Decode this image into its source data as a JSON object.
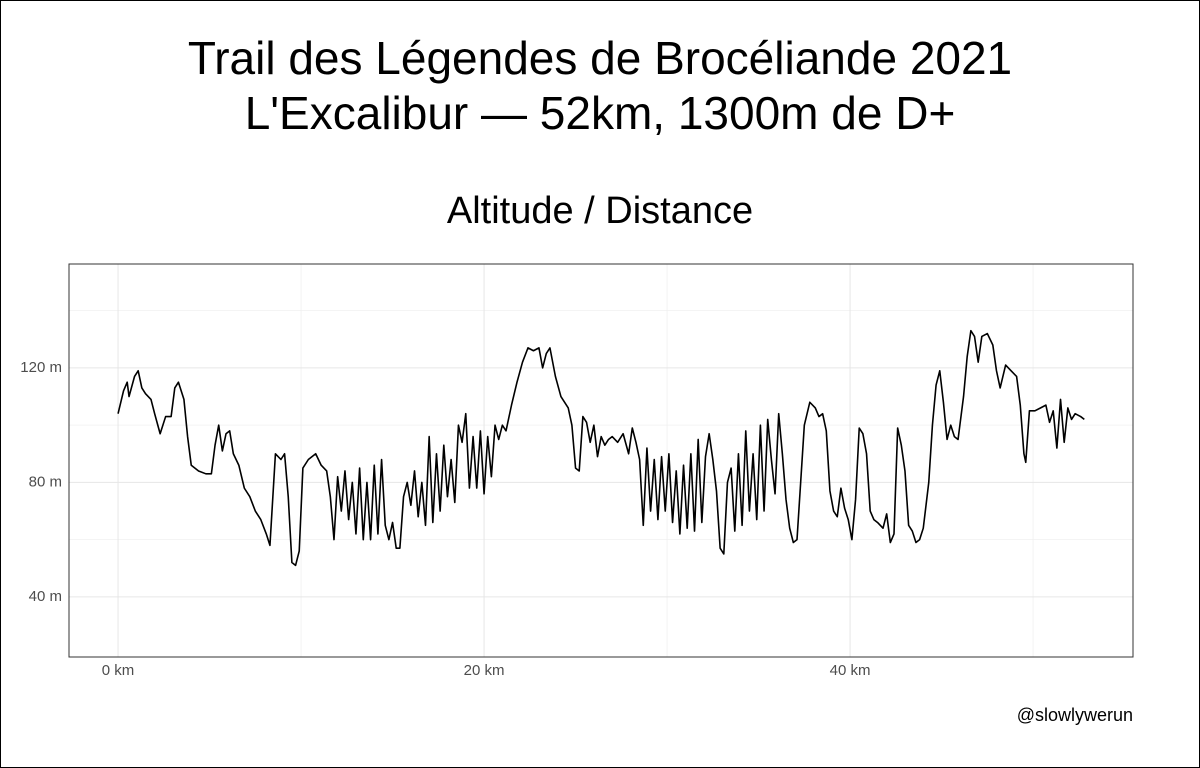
{
  "chart_data": {
    "type": "line",
    "title_lines": [
      "Trail des Légendes de Brocéliande 2021",
      "L'Excalibur — 52km, 1300m de D+"
    ],
    "subtitle": "Altitude / Distance",
    "caption": "@slowlywerun",
    "xlim": [
      -2.68,
      55.46
    ],
    "ylim": [
      19,
      156.3
    ],
    "xticks": [
      {
        "value": 0,
        "label": "0 km"
      },
      {
        "value": 20,
        "label": "20 km"
      },
      {
        "value": 40,
        "label": "40 km"
      }
    ],
    "yticks": [
      {
        "value": 40,
        "label": "40 m"
      },
      {
        "value": 80,
        "label": "80 m"
      },
      {
        "value": 120,
        "label": "120 m"
      }
    ],
    "x_minor_grid": [
      10,
      30,
      50
    ],
    "y_minor_grid": [
      60,
      100,
      140
    ],
    "grid": true,
    "series": [
      {
        "name": "Altitude",
        "color": "#000000",
        "x": [
          0,
          0.3,
          0.5,
          0.6,
          0.9,
          1.1,
          1.3,
          1.5,
          1.8,
          2.0,
          2.3,
          2.6,
          2.9,
          3.1,
          3.3,
          3.6,
          3.8,
          4.0,
          4.4,
          4.8,
          5.1,
          5.3,
          5.5,
          5.7,
          5.9,
          6.1,
          6.3,
          6.6,
          6.9,
          7.2,
          7.5,
          7.8,
          8.1,
          8.3,
          8.6,
          8.9,
          9.1,
          9.3,
          9.5,
          9.7,
          9.9,
          10.1,
          10.4,
          10.8,
          11.1,
          11.4,
          11.6,
          11.8,
          12.0,
          12.2,
          12.4,
          12.6,
          12.8,
          13.0,
          13.2,
          13.4,
          13.6,
          13.8,
          14.0,
          14.2,
          14.4,
          14.6,
          14.8,
          15.0,
          15.2,
          15.4,
          15.6,
          15.8,
          16.0,
          16.2,
          16.4,
          16.6,
          16.8,
          17.0,
          17.2,
          17.4,
          17.6,
          17.8,
          18.0,
          18.2,
          18.4,
          18.6,
          18.8,
          19.0,
          19.2,
          19.4,
          19.6,
          19.8,
          20.0,
          20.2,
          20.4,
          20.6,
          20.8,
          21.0,
          21.2,
          21.5,
          21.8,
          22.1,
          22.4,
          22.7,
          23.0,
          23.2,
          23.4,
          23.6,
          23.9,
          24.2,
          24.6,
          24.8,
          25.0,
          25.2,
          25.4,
          25.6,
          25.8,
          26.0,
          26.2,
          26.4,
          26.6,
          26.8,
          27.0,
          27.3,
          27.6,
          27.9,
          28.1,
          28.3,
          28.5,
          28.7,
          28.9,
          29.1,
          29.3,
          29.5,
          29.7,
          29.9,
          30.1,
          30.3,
          30.5,
          30.7,
          30.9,
          31.1,
          31.3,
          31.5,
          31.7,
          31.9,
          32.1,
          32.3,
          32.5,
          32.7,
          32.9,
          33.1,
          33.3,
          33.5,
          33.7,
          33.9,
          34.1,
          34.3,
          34.5,
          34.7,
          34.9,
          35.1,
          35.3,
          35.5,
          35.7,
          35.9,
          36.1,
          36.3,
          36.5,
          36.7,
          36.9,
          37.1,
          37.3,
          37.5,
          37.8,
          38.1,
          38.3,
          38.5,
          38.7,
          38.9,
          39.1,
          39.3,
          39.5,
          39.7,
          39.9,
          40.1,
          40.3,
          40.5,
          40.7,
          40.9,
          41.1,
          41.3,
          41.5,
          41.8,
          42.0,
          42.2,
          42.4,
          42.6,
          42.8,
          43.0,
          43.2,
          43.4,
          43.6,
          43.8,
          44.0,
          44.3,
          44.5,
          44.7,
          44.9,
          45.1,
          45.3,
          45.5,
          45.7,
          45.9,
          46.2,
          46.4,
          46.6,
          46.8,
          47.0,
          47.2,
          47.5,
          47.8,
          48.0,
          48.2,
          48.5,
          48.8,
          49.1,
          49.3,
          49.5,
          49.6,
          49.8,
          50.1,
          50.4,
          50.7,
          50.9,
          51.1,
          51.3,
          51.5,
          51.7,
          51.9,
          52.1,
          52.3,
          52.6,
          52.8
        ],
        "values": [
          104,
          112,
          115,
          110,
          117,
          119,
          113,
          111,
          109,
          104,
          97,
          103,
          103,
          113,
          115,
          109,
          96,
          86,
          84,
          83,
          83,
          93,
          100,
          91,
          97,
          98,
          90,
          86,
          78,
          75,
          70,
          67,
          62,
          58,
          90,
          88,
          90,
          75,
          52,
          51,
          56,
          85,
          88,
          90,
          86,
          84,
          75,
          60,
          82,
          70,
          84,
          67,
          80,
          62,
          85,
          60,
          80,
          60,
          86,
          62,
          88,
          65,
          60,
          66,
          57,
          57,
          75,
          80,
          72,
          84,
          68,
          80,
          65,
          96,
          66,
          90,
          70,
          93,
          75,
          88,
          73,
          100,
          94,
          104,
          78,
          96,
          78,
          98,
          76,
          96,
          82,
          100,
          95,
          100,
          98,
          107,
          115,
          122,
          127,
          126,
          127,
          120,
          125,
          127,
          117,
          110,
          106,
          100,
          85,
          84,
          103,
          101,
          94,
          100,
          89,
          96,
          93,
          95,
          96,
          94,
          97,
          90,
          99,
          94,
          88,
          65,
          92,
          70,
          88,
          67,
          89,
          70,
          90,
          66,
          84,
          62,
          86,
          64,
          90,
          63,
          95,
          66,
          89,
          97,
          88,
          77,
          57,
          55,
          80,
          85,
          63,
          90,
          65,
          98,
          70,
          90,
          67,
          100,
          70,
          102,
          88,
          76,
          104,
          90,
          74,
          64,
          59,
          60,
          80,
          100,
          108,
          106,
          103,
          104,
          98,
          77,
          70,
          68,
          78,
          71,
          67,
          60,
          74,
          99,
          97,
          90,
          70,
          67,
          66,
          64,
          69,
          59,
          62,
          99,
          93,
          84,
          65,
          63,
          59,
          60,
          64,
          80,
          100,
          114,
          119,
          108,
          95,
          100,
          96,
          95,
          110,
          124,
          133,
          131,
          122,
          131,
          132,
          128,
          119,
          113,
          121,
          119,
          117,
          107,
          90,
          87,
          105,
          105,
          106,
          107,
          101,
          105,
          92,
          109,
          94,
          106,
          102,
          104,
          103,
          102
        ]
      }
    ]
  }
}
